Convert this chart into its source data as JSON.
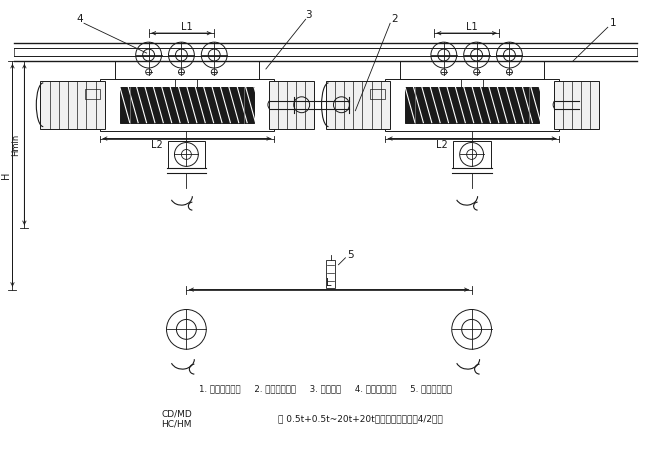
{
  "bg_color": "#ffffff",
  "line_color": "#1a1a1a",
  "title_line12": "CD/MD\nHC/HM",
  "title_model": "型 0.5t+0.5t~20t+20t双算点电动葡萨（4/2结）",
  "legend": "1. 正相电动葡萨     2. 同步机械道测     3. 连接装置     4. 异相电动葡萨     5. 同步电气控制",
  "fig_width": 6.5,
  "fig_height": 4.54
}
